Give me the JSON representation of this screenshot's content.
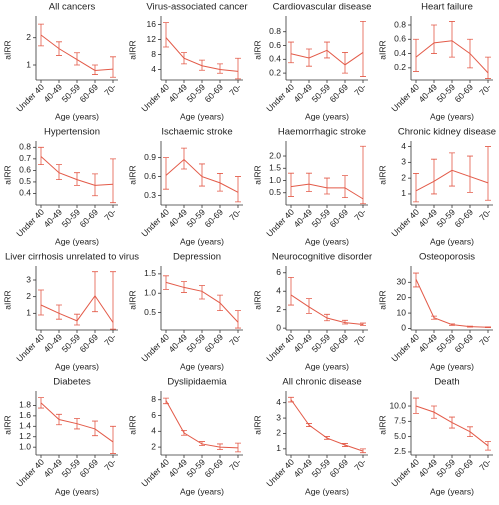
{
  "chart_data": [
    {
      "type": "line",
      "title": "All cancers",
      "x_label": "Age (years)",
      "y_label": "aIRR",
      "categories": [
        "Under 40",
        "40-49",
        "50-59",
        "60-69",
        "70-"
      ],
      "color": "#e35a48",
      "values": [
        2.1,
        1.6,
        1.2,
        0.8,
        0.85
      ],
      "lower": [
        1.7,
        1.35,
        1.0,
        0.65,
        0.55
      ],
      "upper": [
        2.5,
        1.85,
        1.45,
        1.0,
        1.3
      ],
      "ylim": [
        0.45,
        2.65
      ],
      "yticks": [
        1,
        2
      ]
    },
    {
      "type": "line",
      "title": "Virus-associated cancer",
      "x_label": "Age (years)",
      "y_label": "aIRR",
      "categories": [
        "Under 40",
        "40-49",
        "50-59",
        "60-69",
        "70-"
      ],
      "color": "#e35a48",
      "values": [
        12.5,
        7,
        5,
        4,
        3.5
      ],
      "lower": [
        10,
        5.5,
        3.8,
        3,
        1.5
      ],
      "upper": [
        16.5,
        8.5,
        6.5,
        5.5,
        7
      ],
      "ylim": [
        1.2,
        17.2
      ],
      "yticks": [
        4,
        8,
        12,
        16
      ]
    },
    {
      "type": "line",
      "title": "Cardiovascular disease",
      "x_label": "Age (years)",
      "y_label": "aIRR",
      "categories": [
        "Under 40",
        "40-49",
        "50-59",
        "60-69",
        "70-"
      ],
      "color": "#e35a48",
      "values": [
        0.48,
        0.42,
        0.53,
        0.32,
        0.5
      ],
      "lower": [
        0.35,
        0.3,
        0.42,
        0.2,
        0.15
      ],
      "upper": [
        0.65,
        0.55,
        0.65,
        0.5,
        0.95
      ],
      "ylim": [
        0.1,
        0.97
      ],
      "yticks": [
        0.2,
        0.4,
        0.6,
        0.8
      ]
    },
    {
      "type": "line",
      "title": "Heart failure",
      "x_label": "Age (years)",
      "y_label": "aIRR",
      "categories": [
        "Under 40",
        "40-49",
        "50-59",
        "60-69",
        "70-"
      ],
      "color": "#e35a48",
      "values": [
        0.35,
        0.55,
        0.58,
        0.4,
        0.13
      ],
      "lower": [
        0.15,
        0.4,
        0.35,
        0.2,
        0.05
      ],
      "upper": [
        0.6,
        0.8,
        0.85,
        0.6,
        0.35
      ],
      "ylim": [
        0.03,
        0.87
      ],
      "yticks": [
        0.2,
        0.4,
        0.6,
        0.8
      ]
    },
    {
      "type": "line",
      "title": "Hypertension",
      "x_label": "Age (years)",
      "y_label": "aIRR",
      "categories": [
        "Under 40",
        "40-49",
        "50-59",
        "60-69",
        "70-"
      ],
      "color": "#e35a48",
      "values": [
        0.72,
        0.58,
        0.52,
        0.47,
        0.48
      ],
      "lower": [
        0.65,
        0.52,
        0.47,
        0.38,
        0.32
      ],
      "upper": [
        0.8,
        0.65,
        0.58,
        0.57,
        0.7
      ],
      "ylim": [
        0.3,
        0.82
      ],
      "yticks": [
        0.4,
        0.5,
        0.6,
        0.7,
        0.8
      ]
    },
    {
      "type": "line",
      "title": "Ischaemic stroke",
      "x_label": "Age (years)",
      "y_label": "aIRR",
      "categories": [
        "Under 40",
        "40-49",
        "50-59",
        "60-69",
        "70-"
      ],
      "color": "#e35a48",
      "values": [
        0.62,
        0.87,
        0.6,
        0.5,
        0.35
      ],
      "lower": [
        0.4,
        0.72,
        0.45,
        0.37,
        0.2
      ],
      "upper": [
        0.9,
        1.05,
        0.8,
        0.65,
        0.6
      ],
      "ylim": [
        0.15,
        1.1
      ],
      "yticks": [
        0.3,
        0.6,
        0.9
      ]
    },
    {
      "type": "line",
      "title": "Haemorrhagic stroke",
      "x_label": "Age (years)",
      "y_label": "aIRR",
      "categories": [
        "Under 40",
        "40-49",
        "50-59",
        "60-69",
        "70-"
      ],
      "color": "#e35a48",
      "values": [
        0.75,
        0.85,
        0.7,
        0.7,
        0.25
      ],
      "lower": [
        0.35,
        0.55,
        0.45,
        0.3,
        0.05
      ],
      "upper": [
        1.3,
        1.3,
        1.1,
        1.2,
        2.4
      ],
      "ylim": [
        0,
        2.45
      ],
      "yticks": [
        0.5,
        {
          "value": 1,
          "label": "1.0"
        },
        1.5,
        {
          "value": 2,
          "label": "2.0"
        }
      ]
    },
    {
      "type": "line",
      "title": "Chronic kidney disease",
      "x_label": "Age (years)",
      "y_label": "aIRR",
      "categories": [
        "Under 40",
        "40-49",
        "50-59",
        "60-69",
        "70-"
      ],
      "color": "#e35a48",
      "values": [
        1.2,
        1.8,
        2.5,
        2.1,
        1.7
      ],
      "lower": [
        0.5,
        1.0,
        1.5,
        1.1,
        0.6
      ],
      "upper": [
        2.3,
        3.2,
        3.6,
        3.4,
        4.0
      ],
      "ylim": [
        0.3,
        4.1
      ],
      "yticks": [
        1,
        2,
        3,
        4
      ]
    },
    {
      "type": "line",
      "title": "Liver cirrhosis unrelated to virus",
      "x_label": "Age (years)",
      "y_label": "aIRR",
      "categories": [
        "Under 40",
        "40-49",
        "50-59",
        "60-69",
        "70-"
      ],
      "color": "#e35a48",
      "values": [
        1.5,
        1.0,
        0.55,
        2.05,
        0.45
      ],
      "lower": [
        0.9,
        0.65,
        0.3,
        1.1,
        0.05
      ],
      "upper": [
        2.4,
        1.5,
        0.95,
        3.5,
        3.5
      ],
      "ylim": [
        0,
        3.6
      ],
      "yticks": [
        1,
        2,
        3
      ]
    },
    {
      "type": "line",
      "title": "Depression",
      "x_label": "Age (years)",
      "y_label": "aIRR",
      "categories": [
        "Under 40",
        "40-49",
        "50-59",
        "60-69",
        "70-"
      ],
      "color": "#e35a48",
      "values": [
        1.28,
        1.15,
        1.05,
        0.75,
        0.25
      ],
      "lower": [
        1.1,
        1.02,
        0.85,
        0.55,
        0.1
      ],
      "upper": [
        1.45,
        1.3,
        1.2,
        0.95,
        0.55
      ],
      "ylim": [
        0.05,
        1.6
      ],
      "yticks": [
        0.5,
        {
          "value": 1,
          "label": "1.0"
        },
        1.5
      ]
    },
    {
      "type": "line",
      "title": "Neurocognitive disorder",
      "x_label": "Age (years)",
      "y_label": "aIRR",
      "categories": [
        "Under 40",
        "40-49",
        "50-59",
        "60-69",
        "70-"
      ],
      "color": "#e35a48",
      "values": [
        3.6,
        2.3,
        1.1,
        0.6,
        0.4
      ],
      "lower": [
        2.5,
        1.6,
        0.8,
        0.45,
        0.3
      ],
      "upper": [
        5.5,
        3.2,
        1.5,
        0.85,
        0.55
      ],
      "ylim": [
        -0.2,
        6.3
      ],
      "yticks": [
        0,
        2,
        4,
        6
      ]
    },
    {
      "type": "line",
      "title": "Osteoporosis",
      "x_label": "Age (years)",
      "y_label": "aIRR",
      "categories": [
        "Under 40",
        "40-49",
        "50-59",
        "60-69",
        "70-"
      ],
      "color": "#e35a48",
      "values": [
        32,
        7,
        2.5,
        1.2,
        0.8
      ],
      "lower": [
        27,
        6,
        2,
        0.9,
        0.6
      ],
      "upper": [
        36,
        8,
        3,
        1.5,
        1.0
      ],
      "ylim": [
        -1,
        38
      ],
      "yticks": [
        0,
        10,
        20,
        30
      ]
    },
    {
      "type": "line",
      "title": "Diabetes",
      "x_label": "Age (years)",
      "y_label": "aIRR",
      "categories": [
        "Under 40",
        "40-49",
        "50-59",
        "60-69",
        "70-"
      ],
      "color": "#e35a48",
      "values": [
        1.85,
        1.53,
        1.45,
        1.35,
        1.1
      ],
      "lower": [
        1.75,
        1.43,
        1.35,
        1.22,
        0.88
      ],
      "upper": [
        1.95,
        1.63,
        1.55,
        1.5,
        1.4
      ],
      "ylim": [
        0.85,
        2.0
      ],
      "yticks": [
        {
          "value": 1,
          "label": "1.0"
        },
        1.2,
        1.4,
        1.6,
        1.8
      ]
    },
    {
      "type": "line",
      "title": "Dyslipidaemia",
      "x_label": "Age (years)",
      "y_label": "aIRR",
      "categories": [
        "Under 40",
        "40-49",
        "50-59",
        "60-69",
        "70-"
      ],
      "color": "#e35a48",
      "values": [
        7.9,
        3.8,
        2.4,
        2.0,
        1.9
      ],
      "lower": [
        7.5,
        3.5,
        2.2,
        1.7,
        1.4
      ],
      "upper": [
        8.2,
        4.1,
        2.7,
        2.4,
        2.5
      ],
      "ylim": [
        1,
        8.6
      ],
      "yticks": [
        2,
        4,
        6,
        8
      ]
    },
    {
      "type": "line",
      "title": "All chronic disease",
      "x_label": "Age (years)",
      "y_label": "aIRR",
      "categories": [
        "Under 40",
        "40-49",
        "50-59",
        "60-69",
        "70-"
      ],
      "color": "#e35a48",
      "values": [
        4.2,
        2.55,
        1.7,
        1.25,
        0.85
      ],
      "lower": [
        4.05,
        2.45,
        1.62,
        1.15,
        0.75
      ],
      "upper": [
        4.35,
        2.65,
        1.8,
        1.35,
        1.0
      ],
      "ylim": [
        0.6,
        4.5
      ],
      "yticks": [
        1,
        2,
        3,
        4
      ]
    },
    {
      "type": "line",
      "title": "Death",
      "x_label": "Age (years)",
      "y_label": "aIRR",
      "categories": [
        "Under 40",
        "40-49",
        "50-59",
        "60-69",
        "70-"
      ],
      "color": "#e35a48",
      "values": [
        10,
        9,
        7.3,
        5.8,
        3.5
      ],
      "lower": [
        8.8,
        8,
        6.4,
        5,
        2.8
      ],
      "upper": [
        11.3,
        10,
        8.2,
        6.6,
        4.2
      ],
      "ylim": [
        2,
        11.8
      ],
      "yticks": [
        2.5,
        {
          "value": 5,
          "label": "5.0"
        },
        7.5,
        {
          "value": 10,
          "label": "10.0"
        }
      ]
    }
  ]
}
